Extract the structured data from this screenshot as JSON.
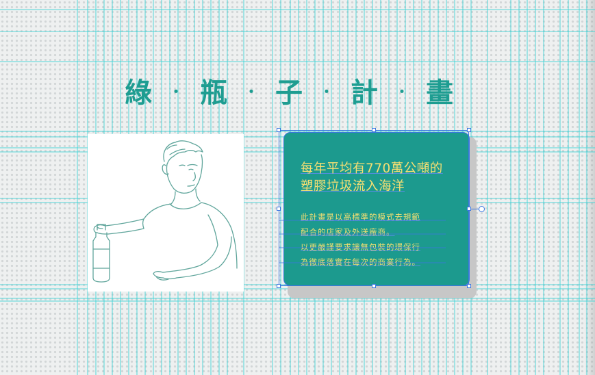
{
  "title": {
    "chars": [
      "綠",
      "瓶",
      "子",
      "計",
      "畫"
    ],
    "separator": "・"
  },
  "card": {
    "heading_lines": [
      "每年平均有770萬公噸的",
      "塑膠垃圾流入海洋"
    ],
    "body_lines": [
      "此計畫是以高標準的模式去規範",
      "配合的店家及外送廠商。",
      "以更嚴謹要求讓無包裝的環保行",
      "為徹底落實在每次的商業行為。"
    ]
  },
  "colors": {
    "title": "#1e9d91",
    "card_background": "#1c9a8e",
    "card_text": "#f6df72",
    "guide_lines": "#37d2d6",
    "selection": "#3b77e0"
  },
  "illustration": {
    "subject": "man-holding-bottle-illustration"
  }
}
